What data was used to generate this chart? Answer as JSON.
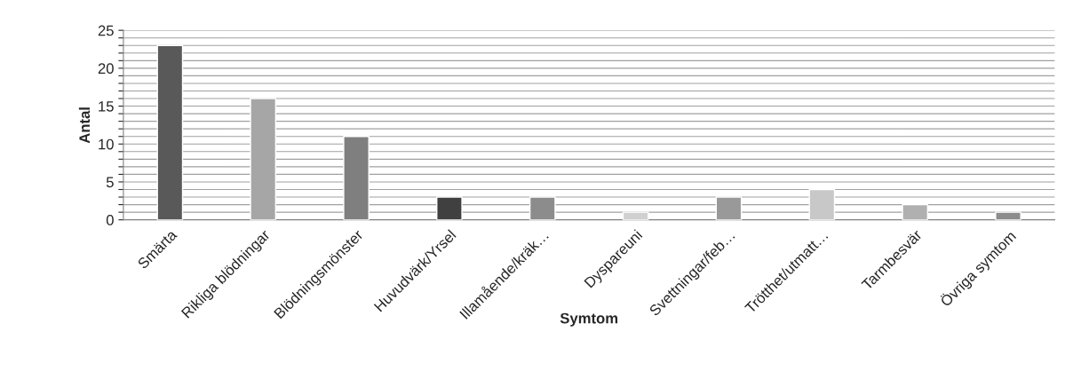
{
  "chart_data": {
    "type": "bar",
    "xlabel": "Symtom",
    "ylabel": "Antal",
    "categories": [
      "Smärta",
      "Rikliga blödningar",
      "Blödningsmönster",
      "Huvudvärk/Yrsel",
      "Illamående/kräk…",
      "Dyspareuni",
      "Svettningar/feb…",
      "Trötthet/utmatt…",
      "Tarmbesvär",
      "Övriga symtom"
    ],
    "values": [
      23,
      16,
      11,
      3,
      3,
      1,
      3,
      4,
      2,
      1
    ],
    "colors": [
      "#595959",
      "#a6a6a6",
      "#7f7f7f",
      "#404040",
      "#8c8c8c",
      "#d0d0d0",
      "#999999",
      "#c8c8c8",
      "#b0b0b0",
      "#8c8c8c"
    ],
    "ylim": [
      0,
      25
    ],
    "yticks": [
      0,
      {
        "value": 1,
        "label": null
      },
      {
        "value": 2,
        "label": null
      },
      {
        "value": 3,
        "label": null
      },
      {
        "value": 4,
        "label": null
      },
      5,
      {
        "value": 6,
        "label": null
      },
      {
        "value": 7,
        "label": null
      },
      {
        "value": 8,
        "label": null
      },
      {
        "value": 9,
        "label": null
      },
      10,
      {
        "value": 11,
        "label": null
      },
      {
        "value": 12,
        "label": null
      },
      {
        "value": 13,
        "label": null
      },
      {
        "value": 14,
        "label": null
      },
      15,
      {
        "value": 16,
        "label": null
      },
      {
        "value": 17,
        "label": null
      },
      {
        "value": 18,
        "label": null
      },
      {
        "value": 19,
        "label": null
      },
      20,
      {
        "value": 21,
        "label": null
      },
      {
        "value": 22,
        "label": null
      },
      {
        "value": 23,
        "label": null
      },
      {
        "value": 24,
        "label": null
      },
      25
    ],
    "grid": "y"
  }
}
